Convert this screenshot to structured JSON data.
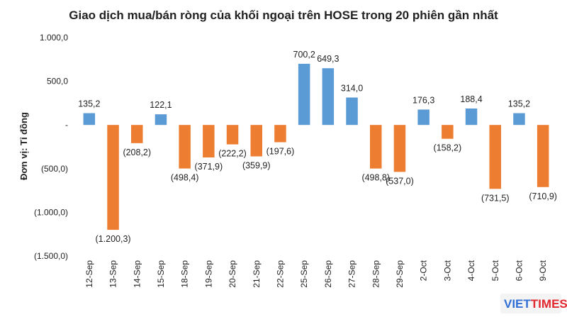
{
  "watermark": {
    "brand_a": "VIET",
    "brand_b": "TIMES"
  },
  "colors": {
    "positive": "#5b9bd5",
    "negative": "#ed7d31"
  },
  "chart_data": {
    "type": "bar",
    "title": "Giao dịch mua/bán ròng của khối ngoại trên HOSE trong 20 phiên gần nhất",
    "ylabel": "Đơn vị: Tỉ đồng",
    "xlabel": "",
    "ylim": [
      -1500,
      1000
    ],
    "yticks": [
      {
        "value": 1000,
        "label": "1.000,0"
      },
      {
        "value": 500,
        "label": "500,0"
      },
      {
        "value": 0,
        "label": "-"
      },
      {
        "value": -500,
        "label": "(500,0)"
      },
      {
        "value": -1000,
        "label": "(1.000,0)"
      },
      {
        "value": -1500,
        "label": "(1.500,0)"
      }
    ],
    "categories": [
      "12-Sep",
      "13-Sep",
      "14-Sep",
      "15-Sep",
      "18-Sep",
      "19-Sep",
      "20-Sep",
      "21-Sep",
      "22-Sep",
      "25-Sep",
      "26-Sep",
      "27-Sep",
      "28-Sep",
      "29-Sep",
      "2-Oct",
      "3-Oct",
      "4-Oct",
      "5-Oct",
      "6-Oct",
      "9-Oct"
    ],
    "values": [
      135.2,
      -1200.3,
      -208.2,
      122.1,
      -498.4,
      -371.9,
      -222.2,
      -359.9,
      -197.6,
      700.2,
      649.3,
      314.0,
      -498.8,
      -537.0,
      176.3,
      -158.2,
      188.4,
      -731.5,
      135.2,
      -710.9
    ],
    "labels": [
      "135,2",
      "(1.200,3)",
      "(208,2)",
      "122,1",
      "(498,4)",
      "(371,9)",
      "(222,2)",
      "(359,9)",
      "(197,6)",
      "700,2",
      "649,3",
      "314,0",
      "(498,8)",
      "(537,0)",
      "176,3",
      "(158,2)",
      "188,4",
      "(731,5)",
      "135,2",
      "(710,9)"
    ],
    "grid": false,
    "legend": "none"
  }
}
